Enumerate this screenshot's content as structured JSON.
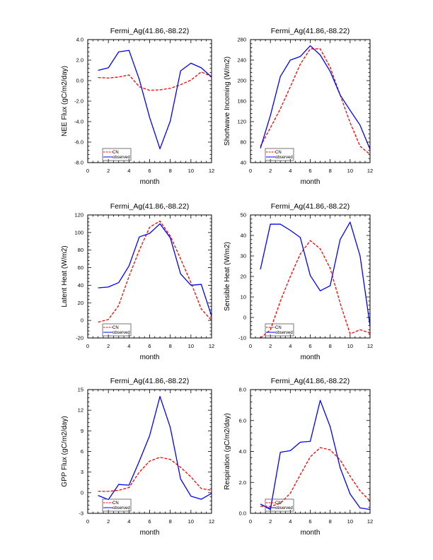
{
  "chart_data": [
    {
      "type": "line",
      "title": "Fermi_Ag(41.86,-88.22)",
      "xlabel": "month",
      "ylabel": "NEE Flux (gC/m2/day)",
      "xlim": [
        0,
        12
      ],
      "ylim": [
        -8.0,
        4.0
      ],
      "xticks": [
        0,
        2,
        4,
        6,
        8,
        10,
        12
      ],
      "xtick_labels": [
        "0",
        "2",
        "4",
        "6",
        "8",
        "10",
        "12"
      ],
      "yticks": [
        -8,
        -6,
        -4,
        -2,
        0,
        2,
        4
      ],
      "ytick_labels": [
        "-8.0",
        "-6.0",
        "-4.0",
        "-2.0",
        "0.0",
        "2.0",
        "4.0"
      ],
      "x": [
        1,
        2,
        3,
        4,
        5,
        6,
        7,
        8,
        9,
        10,
        11,
        12
      ],
      "series": [
        {
          "name": "CN",
          "color": "#ff0000",
          "dashed": true,
          "values": [
            0.3,
            0.25,
            0.35,
            0.55,
            -0.6,
            -0.95,
            -0.9,
            -0.75,
            -0.4,
            0.05,
            0.85,
            0.4
          ]
        },
        {
          "name": "observed",
          "color": "#0000ff",
          "dashed": false,
          "values": [
            1.0,
            1.25,
            2.8,
            2.95,
            0.1,
            -3.6,
            -6.65,
            -3.95,
            0.95,
            1.7,
            1.25,
            0.35
          ]
        }
      ],
      "grid": false,
      "legend": "bottom-left"
    },
    {
      "type": "line",
      "title": "Fermi_Ag(41.86,-88.22)",
      "xlabel": "month",
      "ylabel": "Shortwave Incoming (W/m2)",
      "xlim": [
        0,
        12
      ],
      "ylim": [
        40,
        280
      ],
      "xticks": [
        0,
        2,
        4,
        6,
        8,
        10,
        12
      ],
      "xtick_labels": [
        "0",
        "2",
        "4",
        "6",
        "8",
        "10",
        "12"
      ],
      "yticks": [
        40,
        80,
        120,
        160,
        200,
        240,
        280
      ],
      "ytick_labels": [
        "40",
        "80",
        "120",
        "160",
        "200",
        "240",
        "280"
      ],
      "x": [
        1,
        2,
        3,
        4,
        5,
        6,
        7,
        8,
        9,
        10,
        11,
        12
      ],
      "series": [
        {
          "name": "CN",
          "color": "#ff0000",
          "dashed": true,
          "values": [
            72,
            108,
            145,
            188,
            232,
            262,
            262,
            226,
            172,
            118,
            72,
            56
          ]
        },
        {
          "name": "observed",
          "color": "#0000ff",
          "dashed": false,
          "values": [
            68,
            132,
            208,
            240,
            247,
            268,
            250,
            218,
            172,
            142,
            113,
            66
          ]
        }
      ],
      "grid": false,
      "legend": "bottom-left"
    },
    {
      "type": "line",
      "title": "Fermi_Ag(41.86,-88.22)",
      "xlabel": "month",
      "ylabel": "Latent Heat (W/m2)",
      "xlim": [
        0,
        12
      ],
      "ylim": [
        -20,
        120
      ],
      "xticks": [
        0,
        2,
        4,
        6,
        8,
        10,
        12
      ],
      "xtick_labels": [
        "0",
        "2",
        "4",
        "6",
        "8",
        "10",
        "12"
      ],
      "yticks": [
        -20,
        0,
        20,
        40,
        60,
        80,
        100,
        120
      ],
      "ytick_labels": [
        "-20",
        "0",
        "20",
        "40",
        "60",
        "80",
        "100",
        "120"
      ],
      "x": [
        1,
        2,
        3,
        4,
        5,
        6,
        7,
        8,
        9,
        10,
        11,
        12
      ],
      "series": [
        {
          "name": "CN",
          "color": "#ff0000",
          "dashed": true,
          "values": [
            -2,
            1,
            17,
            50,
            80,
            106,
            113,
            96,
            70,
            43,
            13,
            0
          ]
        },
        {
          "name": "observed",
          "color": "#0000ff",
          "dashed": false,
          "values": [
            37,
            38,
            43,
            62,
            95,
            99,
            110,
            94,
            53,
            40,
            41,
            5
          ]
        }
      ],
      "grid": false,
      "legend": "bottom-left"
    },
    {
      "type": "line",
      "title": "Fermi_Ag(41.86,-88.22)",
      "xlabel": "month",
      "ylabel": "Sensible Heat (W/m2)",
      "xlim": [
        0,
        12
      ],
      "ylim": [
        -10,
        50
      ],
      "xticks": [
        0,
        2,
        4,
        6,
        8,
        10,
        12
      ],
      "xtick_labels": [
        "0",
        "2",
        "4",
        "6",
        "8",
        "10",
        "12"
      ],
      "yticks": [
        -10,
        0,
        10,
        20,
        30,
        40,
        50
      ],
      "ytick_labels": [
        "-10",
        "0",
        "10",
        "20",
        "30",
        "40",
        "50"
      ],
      "x": [
        1,
        2,
        3,
        4,
        5,
        6,
        7,
        8,
        9,
        10,
        11,
        12
      ],
      "series": [
        {
          "name": "CN",
          "color": "#ff0000",
          "dashed": true,
          "values": [
            -10,
            -6,
            8,
            20,
            31,
            37.5,
            33.5,
            24,
            7,
            -8,
            -6,
            -7.5
          ]
        },
        {
          "name": "observed",
          "color": "#0000ff",
          "dashed": false,
          "values": [
            23.5,
            45.5,
            45.5,
            42.5,
            39,
            20.5,
            13,
            15.5,
            38,
            46.5,
            30,
            -4
          ]
        }
      ],
      "grid": false,
      "legend": "bottom-left"
    },
    {
      "type": "line",
      "title": "Fermi_Ag(41.86,-88.22)",
      "xlabel": "month",
      "ylabel": "GPP Flux (gC/m2/day)",
      "xlim": [
        0,
        12
      ],
      "ylim": [
        -3,
        15
      ],
      "xticks": [
        0,
        2,
        4,
        6,
        8,
        10,
        12
      ],
      "xtick_labels": [
        "0",
        "2",
        "4",
        "6",
        "8",
        "10",
        "12"
      ],
      "yticks": [
        -3,
        0,
        3,
        6,
        9,
        12,
        15
      ],
      "ytick_labels": [
        "-3",
        "0",
        "3",
        "6",
        "9",
        "12",
        "15"
      ],
      "x": [
        1,
        2,
        3,
        4,
        5,
        6,
        7,
        8,
        9,
        10,
        11,
        12
      ],
      "series": [
        {
          "name": "CN",
          "color": "#ff0000",
          "dashed": true,
          "values": [
            0.2,
            0.2,
            0.35,
            0.75,
            3.0,
            4.6,
            5.15,
            4.85,
            3.7,
            2.3,
            0.6,
            0.35
          ]
        },
        {
          "name": "observed",
          "color": "#0000ff",
          "dashed": false,
          "values": [
            -0.4,
            -1.0,
            1.2,
            1.1,
            4.6,
            8.3,
            14.0,
            9.5,
            2.0,
            -0.5,
            -0.95,
            -0.1
          ]
        }
      ],
      "grid": false,
      "legend": "bottom-left"
    },
    {
      "type": "line",
      "title": "Fermi_Ag(41.86,-88.22)",
      "xlabel": "month",
      "ylabel": "Respiration (gC/m2/day)",
      "xlim": [
        0,
        12
      ],
      "ylim": [
        0.0,
        8.0
      ],
      "xticks": [
        0,
        2,
        4,
        6,
        8,
        10,
        12
      ],
      "xtick_labels": [
        "0",
        "2",
        "4",
        "6",
        "8",
        "10",
        "12"
      ],
      "yticks": [
        0,
        2,
        4,
        6,
        8
      ],
      "ytick_labels": [
        "0.0",
        "2.0",
        "4.0",
        "6.0",
        "8.0"
      ],
      "x": [
        1,
        2,
        3,
        4,
        5,
        6,
        7,
        8,
        9,
        10,
        11,
        12
      ],
      "series": [
        {
          "name": "CN",
          "color": "#ff0000",
          "dashed": true,
          "values": [
            0.45,
            0.45,
            0.65,
            1.3,
            2.5,
            3.65,
            4.25,
            4.1,
            3.45,
            2.4,
            1.45,
            0.8
          ]
        },
        {
          "name": "observed",
          "color": "#0000ff",
          "dashed": false,
          "values": [
            0.6,
            0.25,
            3.95,
            4.05,
            4.6,
            4.65,
            7.3,
            5.6,
            2.95,
            1.25,
            0.35,
            0.25
          ]
        }
      ],
      "grid": false,
      "legend": "bottom-left"
    }
  ]
}
